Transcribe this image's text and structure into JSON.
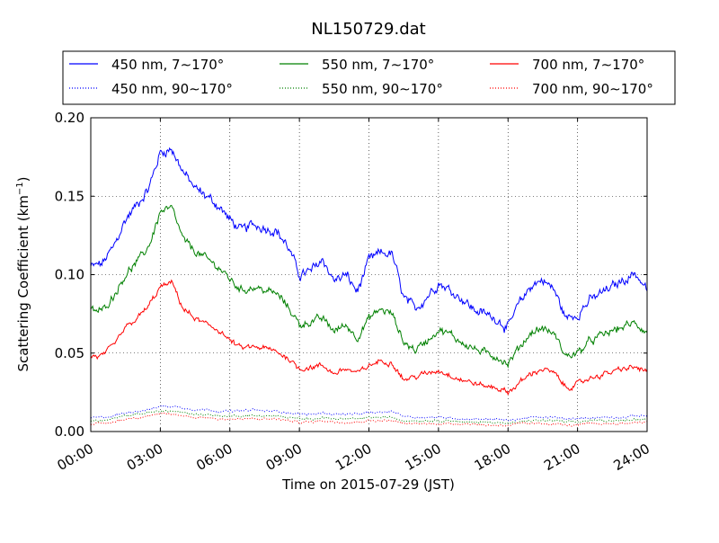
{
  "chart_data": {
    "type": "line",
    "title": "NL150729.dat",
    "xlabel": "Time on 2015-07-29 (JST)",
    "ylabel": "Scattering Coefficient (km",
    "ylabel_sup": "−1",
    "ylabel_close": ")",
    "xlim": [
      "00:00",
      "24:00"
    ],
    "ylim": [
      0.0,
      0.2
    ],
    "x_ticks": [
      "00:00",
      "03:00",
      "06:00",
      "09:00",
      "12:00",
      "15:00",
      "18:00",
      "21:00",
      "24:00"
    ],
    "y_ticks": [
      "0.00",
      "0.05",
      "0.10",
      "0.15",
      "0.20"
    ],
    "grid": true,
    "legend_position": "top, above plot, 3 columns",
    "x_hours": [
      0,
      0.5,
      1,
      1.5,
      2,
      2.5,
      3,
      3.5,
      4,
      4.5,
      5,
      5.5,
      6,
      6.5,
      7,
      7.5,
      8,
      8.5,
      9,
      9.5,
      10,
      10.5,
      11,
      11.5,
      12,
      12.5,
      13,
      13.5,
      14,
      14.5,
      15,
      15.5,
      16,
      16.5,
      17,
      17.5,
      18,
      18.5,
      19,
      19.5,
      20,
      20.5,
      21,
      21.5,
      22,
      22.5,
      23,
      23.5,
      24
    ],
    "series": [
      {
        "name": "450 nm, 7∼170°",
        "color": "#0000ff",
        "style": "solid",
        "values": [
          0.105,
          0.107,
          0.118,
          0.135,
          0.145,
          0.155,
          0.178,
          0.18,
          0.165,
          0.155,
          0.15,
          0.144,
          0.135,
          0.128,
          0.132,
          0.13,
          0.128,
          0.118,
          0.1,
          0.102,
          0.11,
          0.096,
          0.1,
          0.089,
          0.109,
          0.114,
          0.113,
          0.085,
          0.078,
          0.086,
          0.095,
          0.09,
          0.085,
          0.078,
          0.075,
          0.072,
          0.066,
          0.082,
          0.093,
          0.097,
          0.09,
          0.072,
          0.075,
          0.083,
          0.088,
          0.092,
          0.097,
          0.101,
          0.09
        ]
      },
      {
        "name": "550 nm, 7∼170°",
        "color": "#008000",
        "style": "solid",
        "values": [
          0.077,
          0.077,
          0.087,
          0.1,
          0.108,
          0.118,
          0.14,
          0.142,
          0.122,
          0.115,
          0.11,
          0.105,
          0.097,
          0.09,
          0.092,
          0.09,
          0.088,
          0.08,
          0.068,
          0.07,
          0.072,
          0.064,
          0.068,
          0.06,
          0.072,
          0.078,
          0.075,
          0.057,
          0.052,
          0.058,
          0.065,
          0.062,
          0.057,
          0.053,
          0.05,
          0.048,
          0.043,
          0.054,
          0.063,
          0.066,
          0.062,
          0.048,
          0.05,
          0.057,
          0.061,
          0.064,
          0.067,
          0.069,
          0.063
        ]
      },
      {
        "name": "700 nm, 7∼170°",
        "color": "#ff0000",
        "style": "solid",
        "values": [
          0.048,
          0.048,
          0.055,
          0.066,
          0.072,
          0.08,
          0.092,
          0.095,
          0.078,
          0.072,
          0.068,
          0.065,
          0.058,
          0.053,
          0.054,
          0.053,
          0.051,
          0.047,
          0.04,
          0.041,
          0.042,
          0.037,
          0.04,
          0.037,
          0.042,
          0.045,
          0.044,
          0.033,
          0.035,
          0.037,
          0.039,
          0.036,
          0.033,
          0.031,
          0.029,
          0.028,
          0.025,
          0.031,
          0.037,
          0.04,
          0.037,
          0.028,
          0.03,
          0.034,
          0.036,
          0.038,
          0.04,
          0.041,
          0.038
        ]
      },
      {
        "name": "450 nm, 90∼170°",
        "color": "#0000ff",
        "style": "dotted",
        "values": [
          0.009,
          0.009,
          0.01,
          0.012,
          0.013,
          0.014,
          0.016,
          0.016,
          0.015,
          0.014,
          0.014,
          0.013,
          0.013,
          0.013,
          0.014,
          0.013,
          0.013,
          0.012,
          0.011,
          0.011,
          0.012,
          0.011,
          0.011,
          0.011,
          0.012,
          0.012,
          0.013,
          0.01,
          0.009,
          0.009,
          0.009,
          0.009,
          0.008,
          0.008,
          0.008,
          0.008,
          0.007,
          0.008,
          0.009,
          0.009,
          0.009,
          0.008,
          0.008,
          0.009,
          0.009,
          0.009,
          0.009,
          0.01,
          0.01
        ]
      },
      {
        "name": "550 nm, 90∼170°",
        "color": "#008000",
        "style": "dotted",
        "values": [
          0.007,
          0.007,
          0.008,
          0.01,
          0.011,
          0.012,
          0.013,
          0.013,
          0.012,
          0.011,
          0.011,
          0.01,
          0.01,
          0.01,
          0.01,
          0.01,
          0.01,
          0.009,
          0.008,
          0.008,
          0.009,
          0.008,
          0.008,
          0.008,
          0.009,
          0.009,
          0.009,
          0.007,
          0.007,
          0.007,
          0.007,
          0.007,
          0.006,
          0.006,
          0.006,
          0.006,
          0.005,
          0.006,
          0.007,
          0.007,
          0.007,
          0.006,
          0.006,
          0.007,
          0.007,
          0.007,
          0.007,
          0.008,
          0.008
        ]
      },
      {
        "name": "700 nm, 90∼170°",
        "color": "#ff0000",
        "style": "dotted",
        "values": [
          0.005,
          0.005,
          0.006,
          0.008,
          0.009,
          0.01,
          0.011,
          0.011,
          0.01,
          0.009,
          0.009,
          0.008,
          0.008,
          0.008,
          0.008,
          0.008,
          0.008,
          0.007,
          0.006,
          0.006,
          0.007,
          0.006,
          0.006,
          0.006,
          0.007,
          0.007,
          0.007,
          0.005,
          0.005,
          0.005,
          0.005,
          0.005,
          0.005,
          0.005,
          0.004,
          0.004,
          0.004,
          0.005,
          0.005,
          0.005,
          0.005,
          0.004,
          0.004,
          0.005,
          0.005,
          0.005,
          0.005,
          0.006,
          0.006
        ]
      }
    ]
  }
}
